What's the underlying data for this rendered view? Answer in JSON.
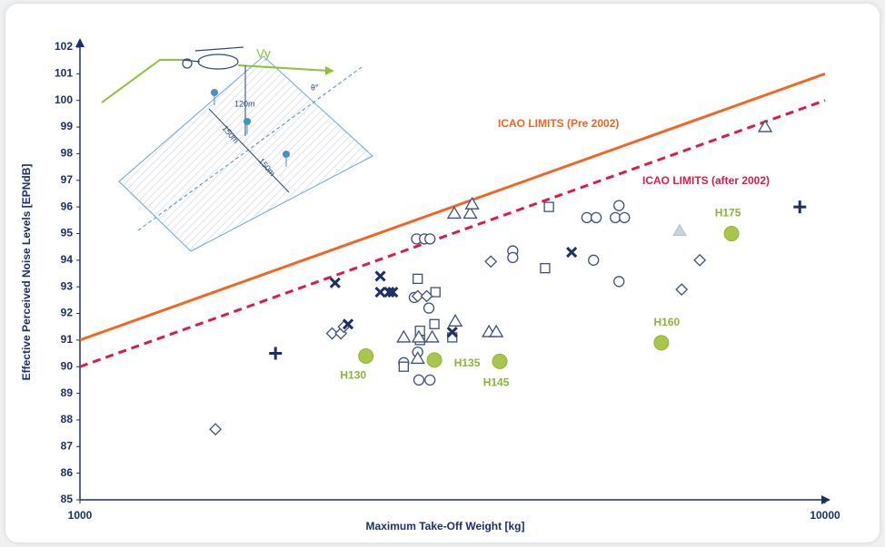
{
  "chart_data": {
    "type": "scatter",
    "x_label": "Maximum  Take-Off Weight [kg]",
    "y_label": "Effective Perceived Noise Levels [EPNdB]",
    "log_x": true,
    "xlim": [
      1000,
      10000
    ],
    "xticks": [
      1000,
      10000
    ],
    "ylim": [
      85,
      102
    ],
    "yticks": [
      85,
      86,
      87,
      88,
      89,
      90,
      91,
      92,
      93,
      94,
      95,
      96,
      97,
      98,
      99,
      100,
      101,
      102
    ],
    "lines": [
      {
        "name": "ICAO LIMITS  (Pre 2002)",
        "color": "#f26522",
        "dashed": false,
        "x": [
          1000,
          10000
        ],
        "y": [
          91,
          101
        ]
      },
      {
        "name": "ICAO LIMITS  (after 2002)",
        "color": "#e0194b",
        "dashed": true,
        "x": [
          1000,
          10000
        ],
        "y": [
          90,
          100
        ]
      }
    ],
    "series": [
      {
        "marker": "circle",
        "color": "#3d4f7c",
        "x": [
          2830,
          2900,
          2950,
          2810,
          2940,
          2840,
          2720,
          2850,
          2950,
          3810,
          3810,
          4790,
          4930,
          4890,
          5290,
          5230,
          5380,
          5290
        ],
        "y": [
          94.8,
          94.8,
          94.8,
          92.6,
          92.2,
          90.55,
          90.15,
          89.5,
          89.5,
          94.35,
          94.1,
          95.6,
          95.6,
          94.0,
          96.05,
          95.6,
          95.6,
          93.2
        ]
      },
      {
        "marker": "square",
        "color": "#3d4f7c",
        "x": [
          2840,
          3000,
          2990,
          2860,
          2860,
          2720,
          3160,
          4210,
          4260
        ],
        "y": [
          93.3,
          92.8,
          91.6,
          91.35,
          91.0,
          90.0,
          91.1,
          93.7,
          96.0
        ]
      },
      {
        "marker": "diamond",
        "color": "#3d4f7c",
        "x": [
          1520,
          2180,
          2240,
          2260,
          2840,
          2920,
          3560,
          6420,
          6790
        ],
        "y": [
          87.65,
          91.25,
          91.25,
          91.5,
          92.65,
          92.65,
          93.95,
          92.9,
          94.0
        ]
      },
      {
        "marker": "triangle",
        "color": "#3d4f7c",
        "x": [
          2720,
          2850,
          2970,
          2840,
          3180,
          3340,
          3360,
          3190,
          3540,
          3620,
          8310
        ],
        "y": [
          91.1,
          91.1,
          91.1,
          90.3,
          95.75,
          95.75,
          96.1,
          91.7,
          91.3,
          91.3,
          99.0
        ]
      },
      {
        "marker": "triangle-filled",
        "color": "#c9d4dc",
        "x": [
          6380
        ],
        "y": [
          95.1
        ]
      },
      {
        "marker": "x",
        "color": "#1c2f66",
        "x": [
          2290,
          2200,
          2530,
          2530,
          2600,
          2630,
          3160,
          4570
        ],
        "y": [
          91.6,
          93.15,
          93.4,
          92.8,
          92.8,
          92.8,
          91.3,
          94.3
        ]
      },
      {
        "marker": "plus",
        "color": "#1c2f66",
        "x": [
          1830,
          9250
        ],
        "y": [
          90.5,
          96.0
        ]
      },
      {
        "marker": "dot",
        "color": "#a8c64a",
        "x": [
          2420,
          2990,
          3660,
          6030,
          7490
        ],
        "y": [
          90.4,
          90.25,
          90.2,
          90.9,
          95.0
        ],
        "labels": [
          "H130",
          "H135",
          "H145",
          "H160",
          "H175"
        ]
      }
    ],
    "inset_labels": [
      "Vy",
      "120m",
      "150m",
      "150m",
      "θ°"
    ]
  }
}
